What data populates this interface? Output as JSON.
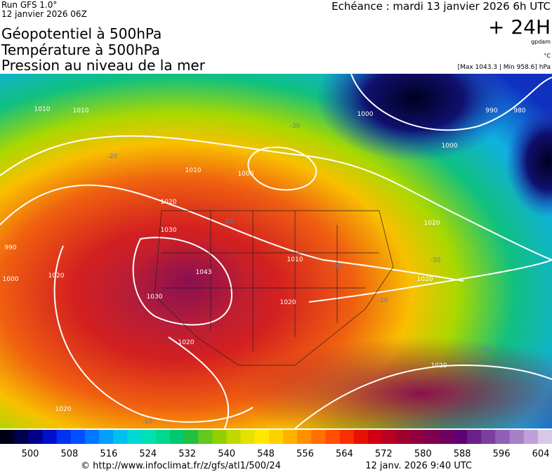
{
  "header": {
    "run": "Run GFS 1.0°",
    "run_date": "12 janvier 2026 06Z",
    "titles": [
      "Géopotentiel à 500hPa",
      "Température à 500hPa",
      "Pression au niveau de la mer"
    ],
    "valid": "Echéance : mardi 13 janvier 2026 6h UTC",
    "lead": "+ 24H",
    "unit_geo": "gpdam",
    "unit_temp": "°C",
    "pressure_range": "[Max 1043.3 | Min 958.6] hPa"
  },
  "map": {
    "labels": [
      "1010",
      "1010",
      "1000",
      "1010",
      "1000",
      "1000",
      "990",
      "980",
      "1020",
      "1030",
      "1043",
      "1030",
      "1020",
      "1020",
      "1010",
      "1020",
      "1020",
      "1020",
      "1000",
      "990",
      "1020",
      "1020",
      "-20",
      "-30",
      "-20",
      "-30",
      "-20",
      "-10",
      "-10",
      "-30"
    ]
  },
  "colorbar": {
    "ticks": [
      "500",
      "508",
      "516",
      "524",
      "532",
      "540",
      "548",
      "556",
      "564",
      "572",
      "580",
      "588",
      "596",
      "604"
    ]
  },
  "footer": {
    "url": "© http://www.infoclimat.fr/z/gfs/atl1/500/24",
    "stamp": "12 janv. 2026  9:40 UTC"
  }
}
